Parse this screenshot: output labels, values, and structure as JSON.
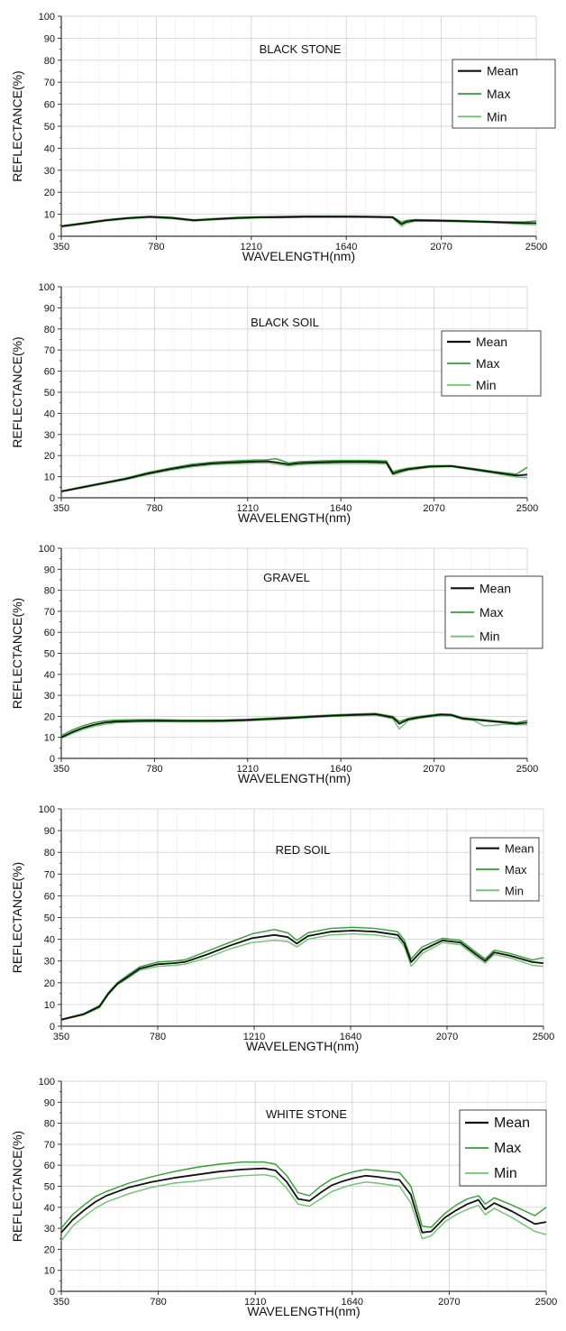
{
  "colors": {
    "mean": "#111111",
    "max": "#2ea02e",
    "min": "#6cc46c",
    "grid": "#d4d4d4",
    "axis": "#333333"
  },
  "chart_data": [
    {
      "type": "line",
      "title": "BLACK STONE",
      "xlabel": "WAVELENGTH(nm)",
      "ylabel": "REFLECTANCE(%)",
      "xlim": [
        350,
        2500
      ],
      "ylim": [
        0,
        100
      ],
      "xticks": [
        350,
        780,
        1210,
        1640,
        2070,
        2500
      ],
      "yticks": [
        0,
        10,
        20,
        30,
        40,
        50,
        60,
        70,
        80,
        90,
        100
      ],
      "grid": true,
      "legend_position": "top-right",
      "legend": [
        "Mean",
        "Max",
        "Min"
      ],
      "x": [
        350,
        450,
        550,
        650,
        750,
        850,
        950,
        1050,
        1150,
        1250,
        1350,
        1450,
        1550,
        1650,
        1750,
        1850,
        1890,
        1910,
        1950,
        2050,
        2150,
        2250,
        2350,
        2450,
        2500
      ],
      "series": [
        {
          "name": "Mean",
          "values": [
            4.5,
            5.8,
            7.2,
            8.2,
            8.8,
            8.3,
            7.2,
            7.8,
            8.3,
            8.6,
            8.7,
            8.9,
            8.9,
            8.9,
            8.8,
            8.6,
            5.5,
            6.5,
            7.2,
            7.1,
            6.9,
            6.6,
            6.3,
            6.0,
            6.0
          ]
        },
        {
          "name": "Max",
          "values": [
            4.8,
            6.1,
            7.5,
            8.5,
            9.1,
            8.6,
            7.5,
            8.1,
            8.6,
            8.9,
            9.0,
            9.2,
            9.2,
            9.2,
            9.1,
            8.9,
            6.4,
            7.2,
            7.6,
            7.4,
            7.2,
            6.9,
            6.6,
            6.5,
            7.0
          ]
        },
        {
          "name": "Min",
          "values": [
            4.2,
            5.5,
            6.9,
            7.9,
            8.5,
            8.0,
            6.9,
            7.5,
            8.0,
            8.3,
            8.4,
            8.6,
            8.6,
            8.6,
            8.5,
            8.3,
            4.5,
            5.8,
            6.8,
            6.8,
            6.6,
            6.3,
            6.0,
            5.4,
            5.2
          ]
        }
      ]
    },
    {
      "type": "line",
      "title": "BLACK  SOIL",
      "xlabel": "WAVELENGTH(nm)",
      "ylabel": "REFLECTANCE(%)",
      "xlim": [
        350,
        2500
      ],
      "ylim": [
        0,
        100
      ],
      "xticks": [
        350,
        780,
        1210,
        1640,
        2070,
        2500
      ],
      "yticks": [
        0,
        10,
        20,
        30,
        40,
        50,
        60,
        70,
        80,
        90,
        100
      ],
      "grid": true,
      "legend_position": "top-right",
      "legend": [
        "Mean",
        "Max",
        "Min"
      ],
      "x": [
        350,
        450,
        550,
        650,
        750,
        850,
        950,
        1050,
        1150,
        1250,
        1300,
        1340,
        1400,
        1450,
        1550,
        1650,
        1750,
        1850,
        1880,
        1910,
        1950,
        2050,
        2150,
        2250,
        2350,
        2450,
        2500
      ],
      "series": [
        {
          "name": "Mean",
          "values": [
            3.0,
            5.0,
            7.0,
            9.0,
            11.5,
            13.5,
            15.2,
            16.3,
            16.8,
            17.2,
            17.3,
            16.8,
            15.8,
            16.4,
            16.8,
            17.0,
            17.0,
            16.8,
            11.5,
            12.5,
            13.5,
            14.8,
            15.0,
            13.5,
            12.0,
            10.5,
            11.0
          ]
        },
        {
          "name": "Max",
          "values": [
            3.2,
            5.3,
            7.3,
            9.4,
            12.0,
            14.0,
            15.8,
            16.9,
            17.5,
            17.9,
            18.0,
            18.5,
            16.5,
            17.1,
            17.5,
            17.7,
            17.7,
            17.5,
            12.3,
            13.2,
            14.0,
            15.2,
            15.3,
            13.9,
            12.4,
            11.2,
            14.5
          ]
        },
        {
          "name": "Min",
          "values": [
            2.8,
            4.7,
            6.7,
            8.6,
            11.0,
            13.0,
            14.6,
            15.7,
            16.1,
            16.5,
            16.6,
            16.0,
            15.1,
            15.7,
            16.1,
            16.3,
            16.3,
            16.1,
            10.8,
            11.8,
            13.0,
            14.4,
            14.7,
            13.1,
            11.6,
            9.8,
            9.5
          ]
        }
      ]
    },
    {
      "type": "line",
      "title": "GRAVEL",
      "xlabel": "WAVELENGTH(nm)",
      "ylabel": "REFLECTANCE(%)",
      "xlim": [
        350,
        2500
      ],
      "ylim": [
        0,
        100
      ],
      "xticks": [
        350,
        780,
        1210,
        1640,
        2070,
        2500
      ],
      "yticks": [
        0,
        10,
        20,
        30,
        40,
        50,
        60,
        70,
        80,
        90,
        100
      ],
      "grid": true,
      "legend_position": "top-right",
      "legend": [
        "Mean",
        "Max",
        "Min"
      ],
      "x": [
        350,
        400,
        450,
        500,
        550,
        600,
        700,
        800,
        900,
        1000,
        1100,
        1200,
        1300,
        1400,
        1500,
        1600,
        1700,
        1800,
        1880,
        1910,
        1950,
        2000,
        2100,
        2150,
        2200,
        2250,
        2300,
        2350,
        2400,
        2450,
        2500
      ],
      "series": [
        {
          "name": "Mean",
          "values": [
            10.0,
            12.5,
            14.5,
            16.0,
            17.0,
            17.5,
            17.8,
            17.9,
            17.8,
            17.8,
            17.9,
            18.2,
            18.7,
            19.2,
            19.8,
            20.3,
            20.7,
            21.0,
            19.5,
            16.5,
            18.5,
            19.5,
            20.8,
            20.6,
            19.0,
            18.5,
            18.0,
            17.5,
            17.0,
            16.5,
            17.0
          ]
        },
        {
          "name": "Max",
          "values": [
            10.8,
            13.5,
            15.5,
            17.0,
            17.8,
            18.2,
            18.4,
            18.4,
            18.2,
            18.2,
            18.3,
            18.6,
            19.1,
            19.6,
            20.2,
            20.7,
            21.1,
            21.4,
            20.0,
            17.5,
            19.0,
            20.0,
            21.2,
            21.0,
            19.4,
            18.9,
            18.4,
            17.9,
            17.5,
            17.0,
            18.0
          ]
        },
        {
          "name": "Min",
          "values": [
            9.5,
            11.8,
            13.8,
            15.2,
            16.2,
            16.9,
            17.3,
            17.5,
            17.4,
            17.4,
            17.5,
            17.8,
            18.3,
            18.8,
            19.4,
            19.9,
            20.3,
            20.6,
            18.8,
            14.0,
            18.0,
            19.0,
            20.4,
            20.2,
            18.6,
            18.1,
            15.5,
            15.8,
            16.3,
            16.0,
            16.0
          ]
        }
      ]
    },
    {
      "type": "line",
      "title": "RED SOIL",
      "xlabel": "WAVELENGTH(nm)",
      "ylabel": "REFLECTANCE(%)",
      "xlim": [
        350,
        2500
      ],
      "ylim": [
        0,
        100
      ],
      "xticks": [
        350,
        780,
        1210,
        1640,
        2070,
        2500
      ],
      "yticks": [
        0,
        10,
        20,
        30,
        40,
        50,
        60,
        70,
        80,
        90,
        100
      ],
      "grid": true,
      "legend_position": "top-right",
      "legend": [
        "Mean",
        "Max",
        "Min"
      ],
      "x": [
        350,
        450,
        520,
        560,
        600,
        650,
        700,
        780,
        850,
        900,
        1000,
        1100,
        1200,
        1300,
        1360,
        1400,
        1450,
        1550,
        1650,
        1750,
        1850,
        1880,
        1910,
        1960,
        2050,
        2130,
        2200,
        2240,
        2280,
        2350,
        2450,
        2500
      ],
      "series": [
        {
          "name": "Mean",
          "values": [
            3.0,
            5.5,
            9.0,
            15.0,
            19.5,
            23.0,
            26.5,
            28.5,
            29.0,
            29.5,
            33.0,
            37.0,
            40.5,
            42.0,
            41.0,
            38.0,
            41.5,
            43.5,
            44.0,
            43.5,
            42.0,
            38.0,
            29.5,
            35.0,
            39.5,
            38.5,
            33.0,
            30.0,
            34.0,
            32.5,
            29.5,
            29.0
          ]
        },
        {
          "name": "Max",
          "values": [
            3.2,
            5.8,
            9.5,
            15.5,
            20.0,
            23.8,
            27.3,
            29.5,
            30.0,
            30.5,
            34.5,
            38.5,
            42.5,
            44.5,
            43.0,
            39.5,
            43.0,
            45.0,
            45.5,
            45.0,
            43.5,
            39.5,
            31.0,
            36.5,
            40.5,
            39.5,
            34.0,
            31.0,
            35.0,
            33.5,
            30.5,
            31.5
          ]
        },
        {
          "name": "Min",
          "values": [
            2.8,
            5.2,
            8.5,
            14.5,
            19.0,
            22.3,
            25.8,
            27.5,
            28.0,
            28.5,
            31.5,
            35.5,
            38.5,
            39.5,
            39.0,
            36.5,
            40.0,
            42.0,
            42.5,
            42.0,
            40.5,
            36.5,
            27.5,
            33.5,
            38.5,
            37.5,
            32.0,
            29.0,
            33.0,
            31.5,
            28.0,
            27.5
          ]
        }
      ]
    },
    {
      "type": "line",
      "title": "WHITE STONE",
      "xlabel": "WAVELENGTH(nm)",
      "ylabel": "REFLECTANCE(%)",
      "xlim": [
        350,
        2500
      ],
      "ylim": [
        0,
        100
      ],
      "xticks": [
        350,
        780,
        1210,
        1640,
        2070,
        2500
      ],
      "yticks": [
        0,
        10,
        20,
        30,
        40,
        50,
        60,
        70,
        80,
        90,
        100
      ],
      "grid": true,
      "legend_position": "top-right",
      "legend": [
        "Mean",
        "Max",
        "Min"
      ],
      "x": [
        350,
        400,
        450,
        500,
        550,
        650,
        750,
        850,
        950,
        1050,
        1150,
        1250,
        1300,
        1350,
        1400,
        1450,
        1500,
        1550,
        1600,
        1650,
        1700,
        1750,
        1850,
        1900,
        1950,
        1990,
        2050,
        2100,
        2150,
        2200,
        2230,
        2270,
        2350,
        2450,
        2500
      ],
      "series": [
        {
          "name": "Mean",
          "values": [
            28.0,
            34.0,
            38.5,
            42.5,
            45.5,
            49.5,
            52.0,
            54.0,
            55.5,
            57.0,
            58.0,
            58.5,
            57.5,
            52.0,
            44.0,
            43.0,
            47.0,
            50.5,
            52.5,
            54.0,
            55.0,
            54.5,
            53.0,
            46.0,
            28.0,
            28.5,
            35.0,
            38.5,
            41.5,
            43.5,
            39.0,
            42.0,
            38.0,
            32.0,
            33.0
          ]
        },
        {
          "name": "Max",
          "values": [
            30.0,
            36.5,
            41.0,
            45.0,
            47.5,
            51.5,
            54.5,
            57.0,
            59.0,
            60.5,
            61.5,
            61.5,
            60.5,
            55.0,
            47.0,
            45.5,
            50.0,
            53.5,
            55.5,
            57.0,
            58.0,
            57.5,
            56.5,
            50.0,
            31.0,
            30.5,
            37.0,
            41.0,
            44.0,
            45.5,
            41.5,
            44.5,
            41.0,
            36.0,
            40.0
          ]
        },
        {
          "name": "Min",
          "values": [
            24.0,
            31.0,
            35.5,
            39.5,
            42.5,
            46.5,
            49.5,
            51.5,
            52.5,
            54.0,
            55.0,
            55.5,
            54.5,
            49.0,
            41.5,
            40.5,
            44.0,
            47.5,
            49.5,
            51.0,
            52.0,
            51.5,
            50.0,
            42.0,
            25.0,
            26.5,
            33.0,
            36.5,
            39.0,
            41.0,
            36.5,
            39.5,
            35.0,
            28.5,
            27.0
          ]
        }
      ]
    }
  ]
}
